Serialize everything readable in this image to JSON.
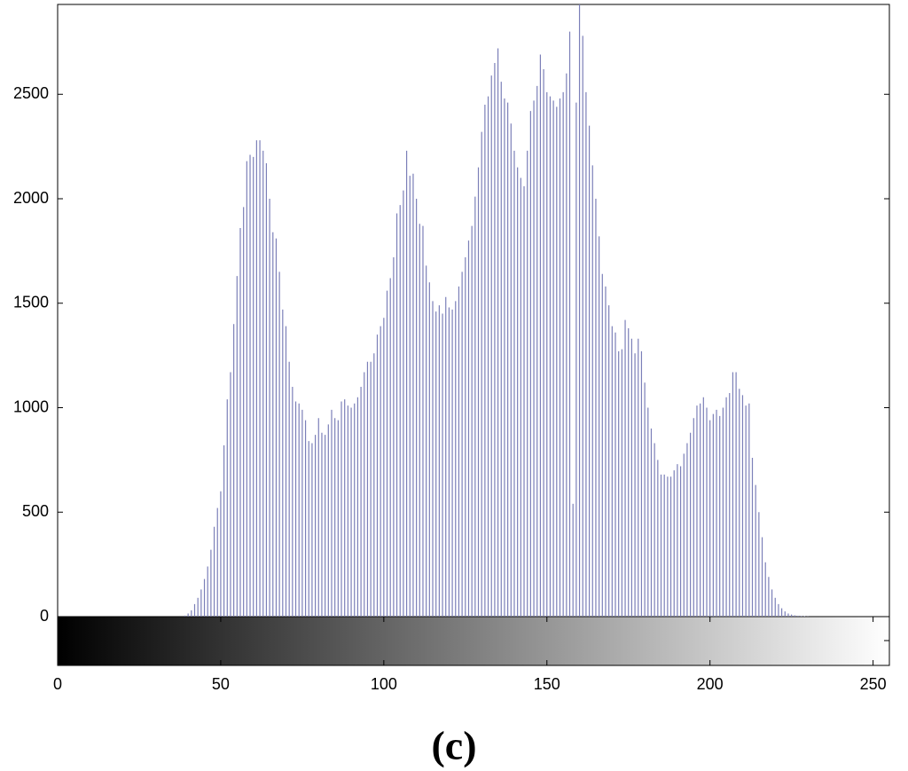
{
  "chart_data": {
    "type": "bar",
    "caption": "(c)",
    "color": "#7b7fb8",
    "grid": false,
    "x": [
      0,
      1,
      2,
      3,
      4,
      5,
      6,
      7,
      8,
      9,
      10,
      11,
      12,
      13,
      14,
      15,
      16,
      17,
      18,
      19,
      20,
      21,
      22,
      23,
      24,
      25,
      26,
      27,
      28,
      29,
      30,
      31,
      32,
      33,
      34,
      35,
      36,
      37,
      38,
      39,
      40,
      41,
      42,
      43,
      44,
      45,
      46,
      47,
      48,
      49,
      50,
      51,
      52,
      53,
      54,
      55,
      56,
      57,
      58,
      59,
      60,
      61,
      62,
      63,
      64,
      65,
      66,
      67,
      68,
      69,
      70,
      71,
      72,
      73,
      74,
      75,
      76,
      77,
      78,
      79,
      80,
      81,
      82,
      83,
      84,
      85,
      86,
      87,
      88,
      89,
      90,
      91,
      92,
      93,
      94,
      95,
      96,
      97,
      98,
      99,
      100,
      101,
      102,
      103,
      104,
      105,
      106,
      107,
      108,
      109,
      110,
      111,
      112,
      113,
      114,
      115,
      116,
      117,
      118,
      119,
      120,
      121,
      122,
      123,
      124,
      125,
      126,
      127,
      128,
      129,
      130,
      131,
      132,
      133,
      134,
      135,
      136,
      137,
      138,
      139,
      140,
      141,
      142,
      143,
      144,
      145,
      146,
      147,
      148,
      149,
      150,
      151,
      152,
      153,
      154,
      155,
      156,
      157,
      158,
      159,
      160,
      161,
      162,
      163,
      164,
      165,
      166,
      167,
      168,
      169,
      170,
      171,
      172,
      173,
      174,
      175,
      176,
      177,
      178,
      179,
      180,
      181,
      182,
      183,
      184,
      185,
      186,
      187,
      188,
      189,
      190,
      191,
      192,
      193,
      194,
      195,
      196,
      197,
      198,
      199,
      200,
      201,
      202,
      203,
      204,
      205,
      206,
      207,
      208,
      209,
      210,
      211,
      212,
      213,
      214,
      215,
      216,
      217,
      218,
      219,
      220,
      221,
      222,
      223,
      224,
      225,
      226,
      227,
      228,
      229,
      230,
      231,
      232,
      233,
      234,
      235,
      236,
      237,
      238,
      239,
      240,
      241,
      242,
      243,
      244,
      245,
      246,
      247,
      248,
      249,
      250,
      251,
      252,
      253,
      254,
      255
    ],
    "values": [
      0,
      0,
      0,
      0,
      0,
      0,
      0,
      0,
      0,
      0,
      0,
      0,
      0,
      0,
      0,
      0,
      0,
      0,
      0,
      0,
      0,
      0,
      0,
      0,
      0,
      0,
      0,
      0,
      0,
      0,
      0,
      0,
      0,
      0,
      0,
      0,
      0,
      0,
      0,
      5,
      15,
      30,
      60,
      90,
      130,
      180,
      240,
      320,
      430,
      520,
      600,
      820,
      1040,
      1170,
      1400,
      1630,
      1860,
      1960,
      2180,
      2210,
      2200,
      2280,
      2280,
      2230,
      2170,
      2000,
      1840,
      1810,
      1650,
      1470,
      1390,
      1220,
      1100,
      1030,
      1020,
      990,
      940,
      840,
      830,
      870,
      950,
      880,
      870,
      920,
      990,
      950,
      940,
      1030,
      1040,
      1010,
      1000,
      1020,
      1050,
      1100,
      1170,
      1220,
      1220,
      1260,
      1350,
      1390,
      1430,
      1560,
      1620,
      1720,
      1930,
      1970,
      2040,
      2230,
      2110,
      2120,
      2000,
      1880,
      1870,
      1680,
      1600,
      1510,
      1460,
      1490,
      1450,
      1530,
      1480,
      1470,
      1510,
      1580,
      1650,
      1720,
      1800,
      1870,
      2010,
      2150,
      2320,
      2450,
      2490,
      2590,
      2650,
      2720,
      2560,
      2480,
      2460,
      2360,
      2230,
      2150,
      2100,
      2060,
      2230,
      2420,
      2470,
      2540,
      2690,
      2620,
      2510,
      2490,
      2470,
      2440,
      2480,
      2510,
      2600,
      2800,
      540,
      2460,
      2930,
      2780,
      2510,
      2350,
      2160,
      2000,
      1820,
      1640,
      1580,
      1490,
      1390,
      1360,
      1270,
      1280,
      1420,
      1380,
      1330,
      1260,
      1330,
      1270,
      1120,
      1000,
      900,
      830,
      750,
      680,
      680,
      670,
      670,
      700,
      730,
      720,
      780,
      830,
      880,
      950,
      1010,
      1020,
      1050,
      1000,
      940,
      970,
      990,
      960,
      1000,
      1050,
      1070,
      1170,
      1170,
      1090,
      1060,
      1010,
      1020,
      760,
      630,
      500,
      380,
      260,
      190,
      130,
      90,
      60,
      40,
      25,
      15,
      10,
      6,
      4,
      3,
      2,
      1,
      0,
      0,
      0,
      0,
      0,
      0,
      0,
      0,
      0,
      0,
      0,
      0,
      0,
      0,
      0,
      0,
      0,
      0,
      0,
      0,
      0,
      0,
      0,
      0,
      0
    ],
    "xlim": [
      0,
      255
    ],
    "xticks": [
      0,
      50,
      100,
      150,
      200,
      250
    ],
    "ylim": [
      0,
      2930
    ],
    "yticks": [
      0,
      500,
      1000,
      1500,
      2000,
      2500
    ]
  }
}
